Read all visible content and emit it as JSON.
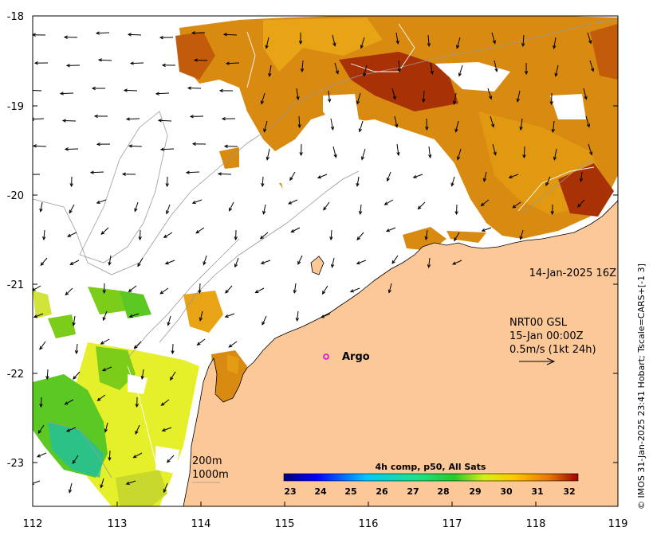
{
  "map": {
    "timestamp": "14-Jan-2025 16Z",
    "current_product": "NRT00 GSL",
    "current_time": "15-Jan 00:00Z",
    "current_scale": "0.5m/s (1kt 24h)",
    "station_label": "Argo",
    "contour_200": "200m",
    "contour_1000": "1000m",
    "credit": "© IMOS 31-Jan-2025 23:41 Hobart; Tscale=CARS+[-1 3]",
    "colors": {
      "land": "#fcc898",
      "warm_sst": "#d98a10",
      "hot_sst": "#a83206",
      "green_sst": "#7ccc1a",
      "station_marker": "#e000e0"
    }
  },
  "axes": {
    "x_ticks": [
      "112",
      "113",
      "114",
      "115",
      "116",
      "117",
      "118",
      "119"
    ],
    "y_ticks": [
      "-18",
      "-19",
      "-20",
      "-21",
      "-22",
      "-23"
    ]
  },
  "colorbar": {
    "title": "4h comp, p50, All Sats",
    "ticks": [
      "23",
      "24",
      "25",
      "26",
      "27",
      "28",
      "29",
      "30",
      "31",
      "32"
    ]
  }
}
